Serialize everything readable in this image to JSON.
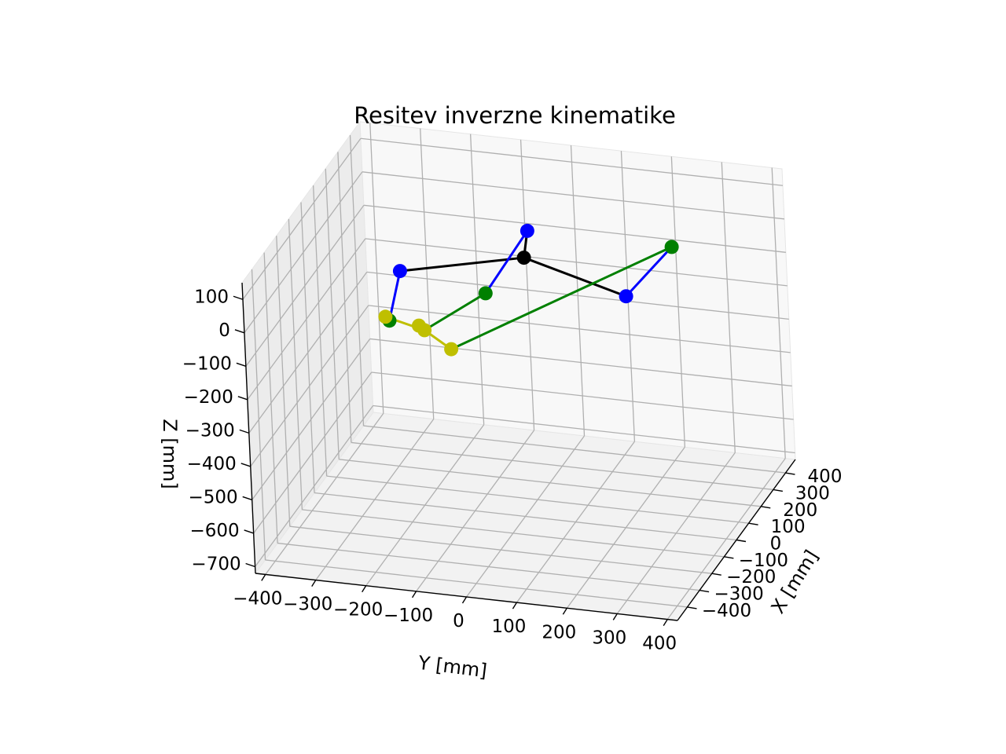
{
  "chart_data": {
    "type": "line3d",
    "title": "Resitev inverzne kinematike",
    "xlabel": "X [mm]",
    "ylabel": "Y [mm]",
    "zlabel": "Z [mm]",
    "x_ticks": [
      -400,
      -300,
      -200,
      -100,
      0,
      100,
      200,
      300,
      400
    ],
    "y_ticks": [
      -400,
      -300,
      -200,
      -100,
      0,
      100,
      200,
      300,
      400
    ],
    "z_ticks": [
      100,
      0,
      -100,
      -200,
      -300,
      -400,
      -500,
      -600,
      -700
    ],
    "x_tick_labels": [
      "−400",
      "−300",
      "−200",
      "−100",
      "0",
      "100",
      "200",
      "300",
      "400"
    ],
    "y_tick_labels": [
      "−400",
      "−300",
      "−200",
      "−100",
      "0",
      "100",
      "200",
      "300",
      "400"
    ],
    "z_tick_labels": [
      "100",
      "0",
      "−100",
      "−200",
      "−300",
      "−400",
      "−500",
      "−600",
      "−700"
    ],
    "xlim": [
      -480,
      480
    ],
    "ylim": [
      -420,
      420
    ],
    "zlim": [
      -720,
      150
    ],
    "view": {
      "elev": 25,
      "azim": 20
    },
    "grid": true,
    "points": {
      "base_center": [
        -150,
        60,
        140
      ],
      "base_joints": [
        [
          -300,
          -150,
          140
        ],
        [
          0,
          30,
          140
        ],
        [
          -300,
          300,
          140
        ]
      ],
      "elbows": [
        [
          -360,
          -160,
          20
        ],
        [
          -150,
          -20,
          20
        ],
        [
          220,
          260,
          20
        ]
      ],
      "platform_joints": [
        [
          300,
          -340,
          -330
        ],
        [
          400,
          -300,
          -400
        ],
        [
          250,
          -250,
          -330
        ],
        [
          180,
          -180,
          -340
        ]
      ]
    },
    "series": [
      {
        "color": "#000000",
        "segments": [
          [
            [
              -150,
              60,
              140
            ],
            [
              -300,
              -150,
              140
            ]
          ],
          [
            [
              -150,
              60,
              140
            ],
            [
              0,
              30,
              140
            ]
          ],
          [
            [
              -150,
              60,
              140
            ],
            [
              -300,
              300,
              140
            ]
          ]
        ]
      },
      {
        "color": "#0000ff",
        "segments": [
          [
            [
              -300,
              -150,
              140
            ],
            [
              -360,
              -160,
              20
            ]
          ],
          [
            [
              0,
              30,
              140
            ],
            [
              -150,
              -20,
              20
            ]
          ],
          [
            [
              -300,
              300,
              140
            ],
            [
              220,
              260,
              20
            ]
          ]
        ]
      },
      {
        "color": "#008000",
        "segments": [
          [
            [
              -360,
              -160,
              20
            ],
            [
              300,
              -340,
              -330
            ]
          ],
          [
            [
              -150,
              -20,
              20
            ],
            [
              250,
              -250,
              -330
            ]
          ],
          [
            [
              220,
              260,
              20
            ],
            [
              180,
              -180,
              -340
            ]
          ]
        ]
      },
      {
        "color": "#bfbf00",
        "segments": [
          [
            [
              300,
              -340,
              -330
            ],
            [
              250,
              -250,
              -330
            ]
          ],
          [
            [
              400,
              -300,
              -400
            ],
            [
              250,
              -250,
              -330
            ]
          ],
          [
            [
              250,
              -250,
              -330
            ],
            [
              180,
              -180,
              -340
            ]
          ]
        ]
      }
    ],
    "marker_colors": {
      "base_center": "#000000",
      "base_joints": "#0000ff",
      "elbows": "#008000",
      "platform_joints": "#bfbf00"
    }
  }
}
